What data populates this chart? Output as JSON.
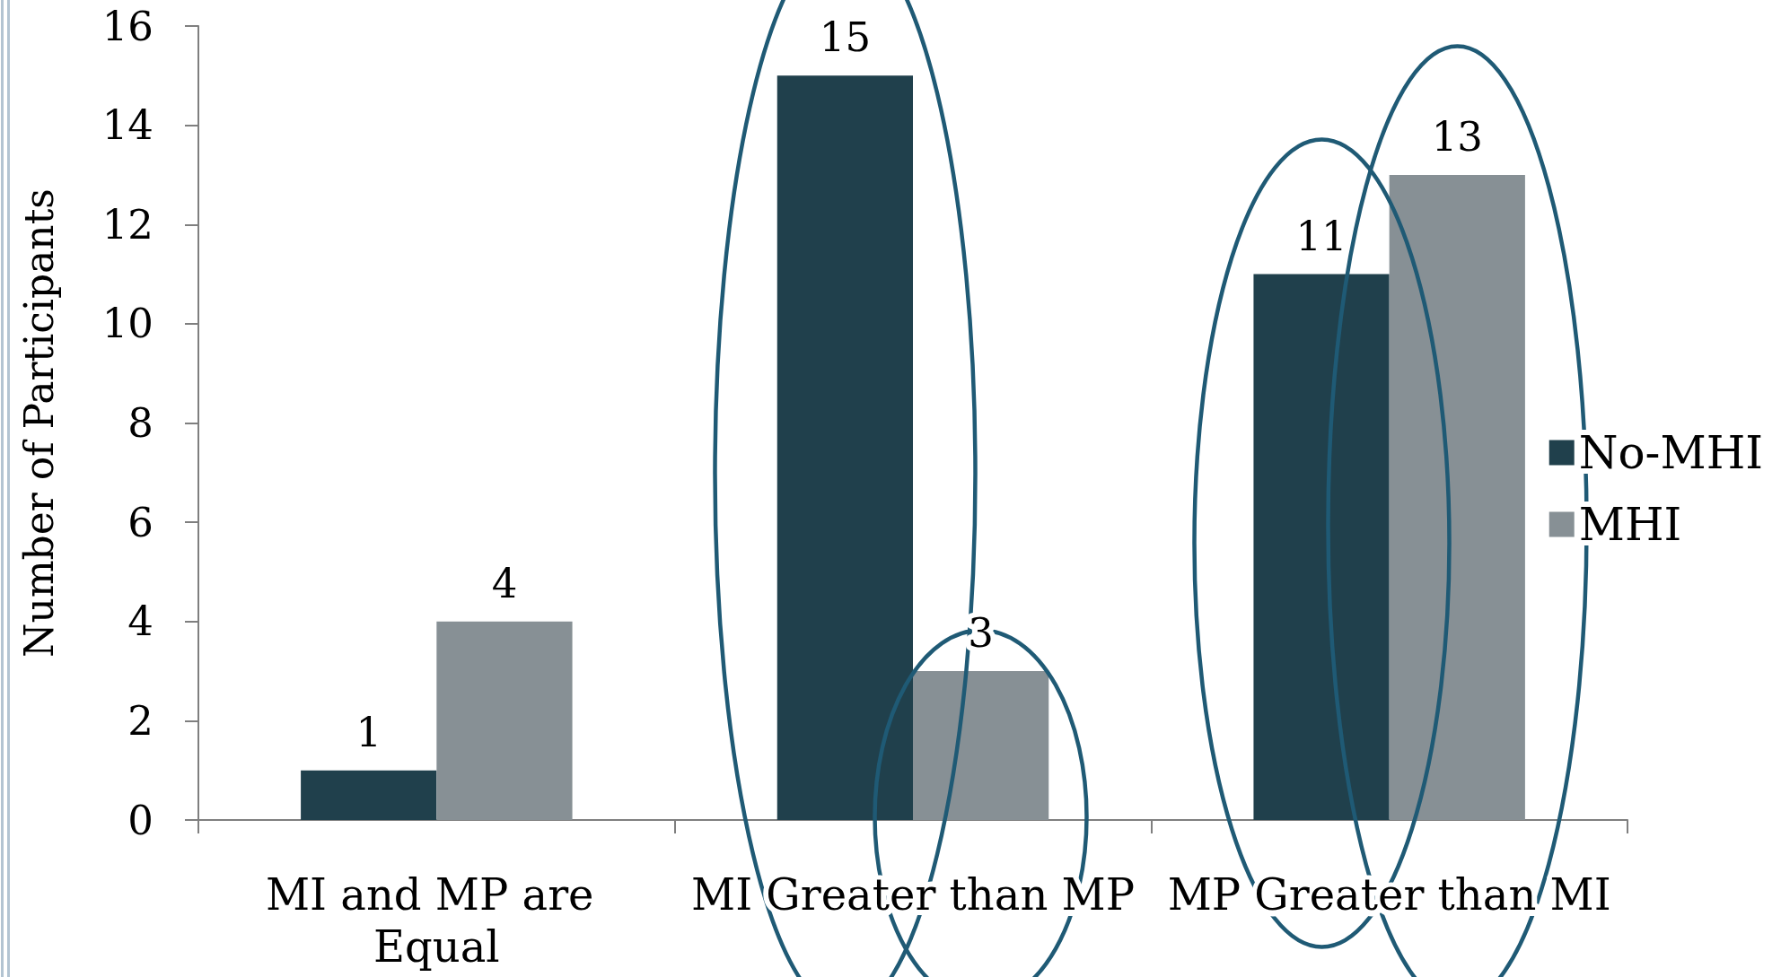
{
  "chart_data": {
    "type": "bar",
    "ylabel": "Number of Participants",
    "categories": [
      "MI and MP are Equal",
      "MI Greater than MP",
      "MP Greater than MI"
    ],
    "series": [
      {
        "name": "No-MHI",
        "color": "#20404c",
        "values": [
          1,
          15,
          11
        ]
      },
      {
        "name": "MHI",
        "color": "#879095",
        "values": [
          4,
          3,
          13
        ]
      }
    ],
    "ylim": [
      0,
      16
    ],
    "yticks": [
      0,
      2,
      4,
      6,
      8,
      10,
      12,
      14,
      16
    ],
    "legend": "right",
    "data_labels": true
  }
}
